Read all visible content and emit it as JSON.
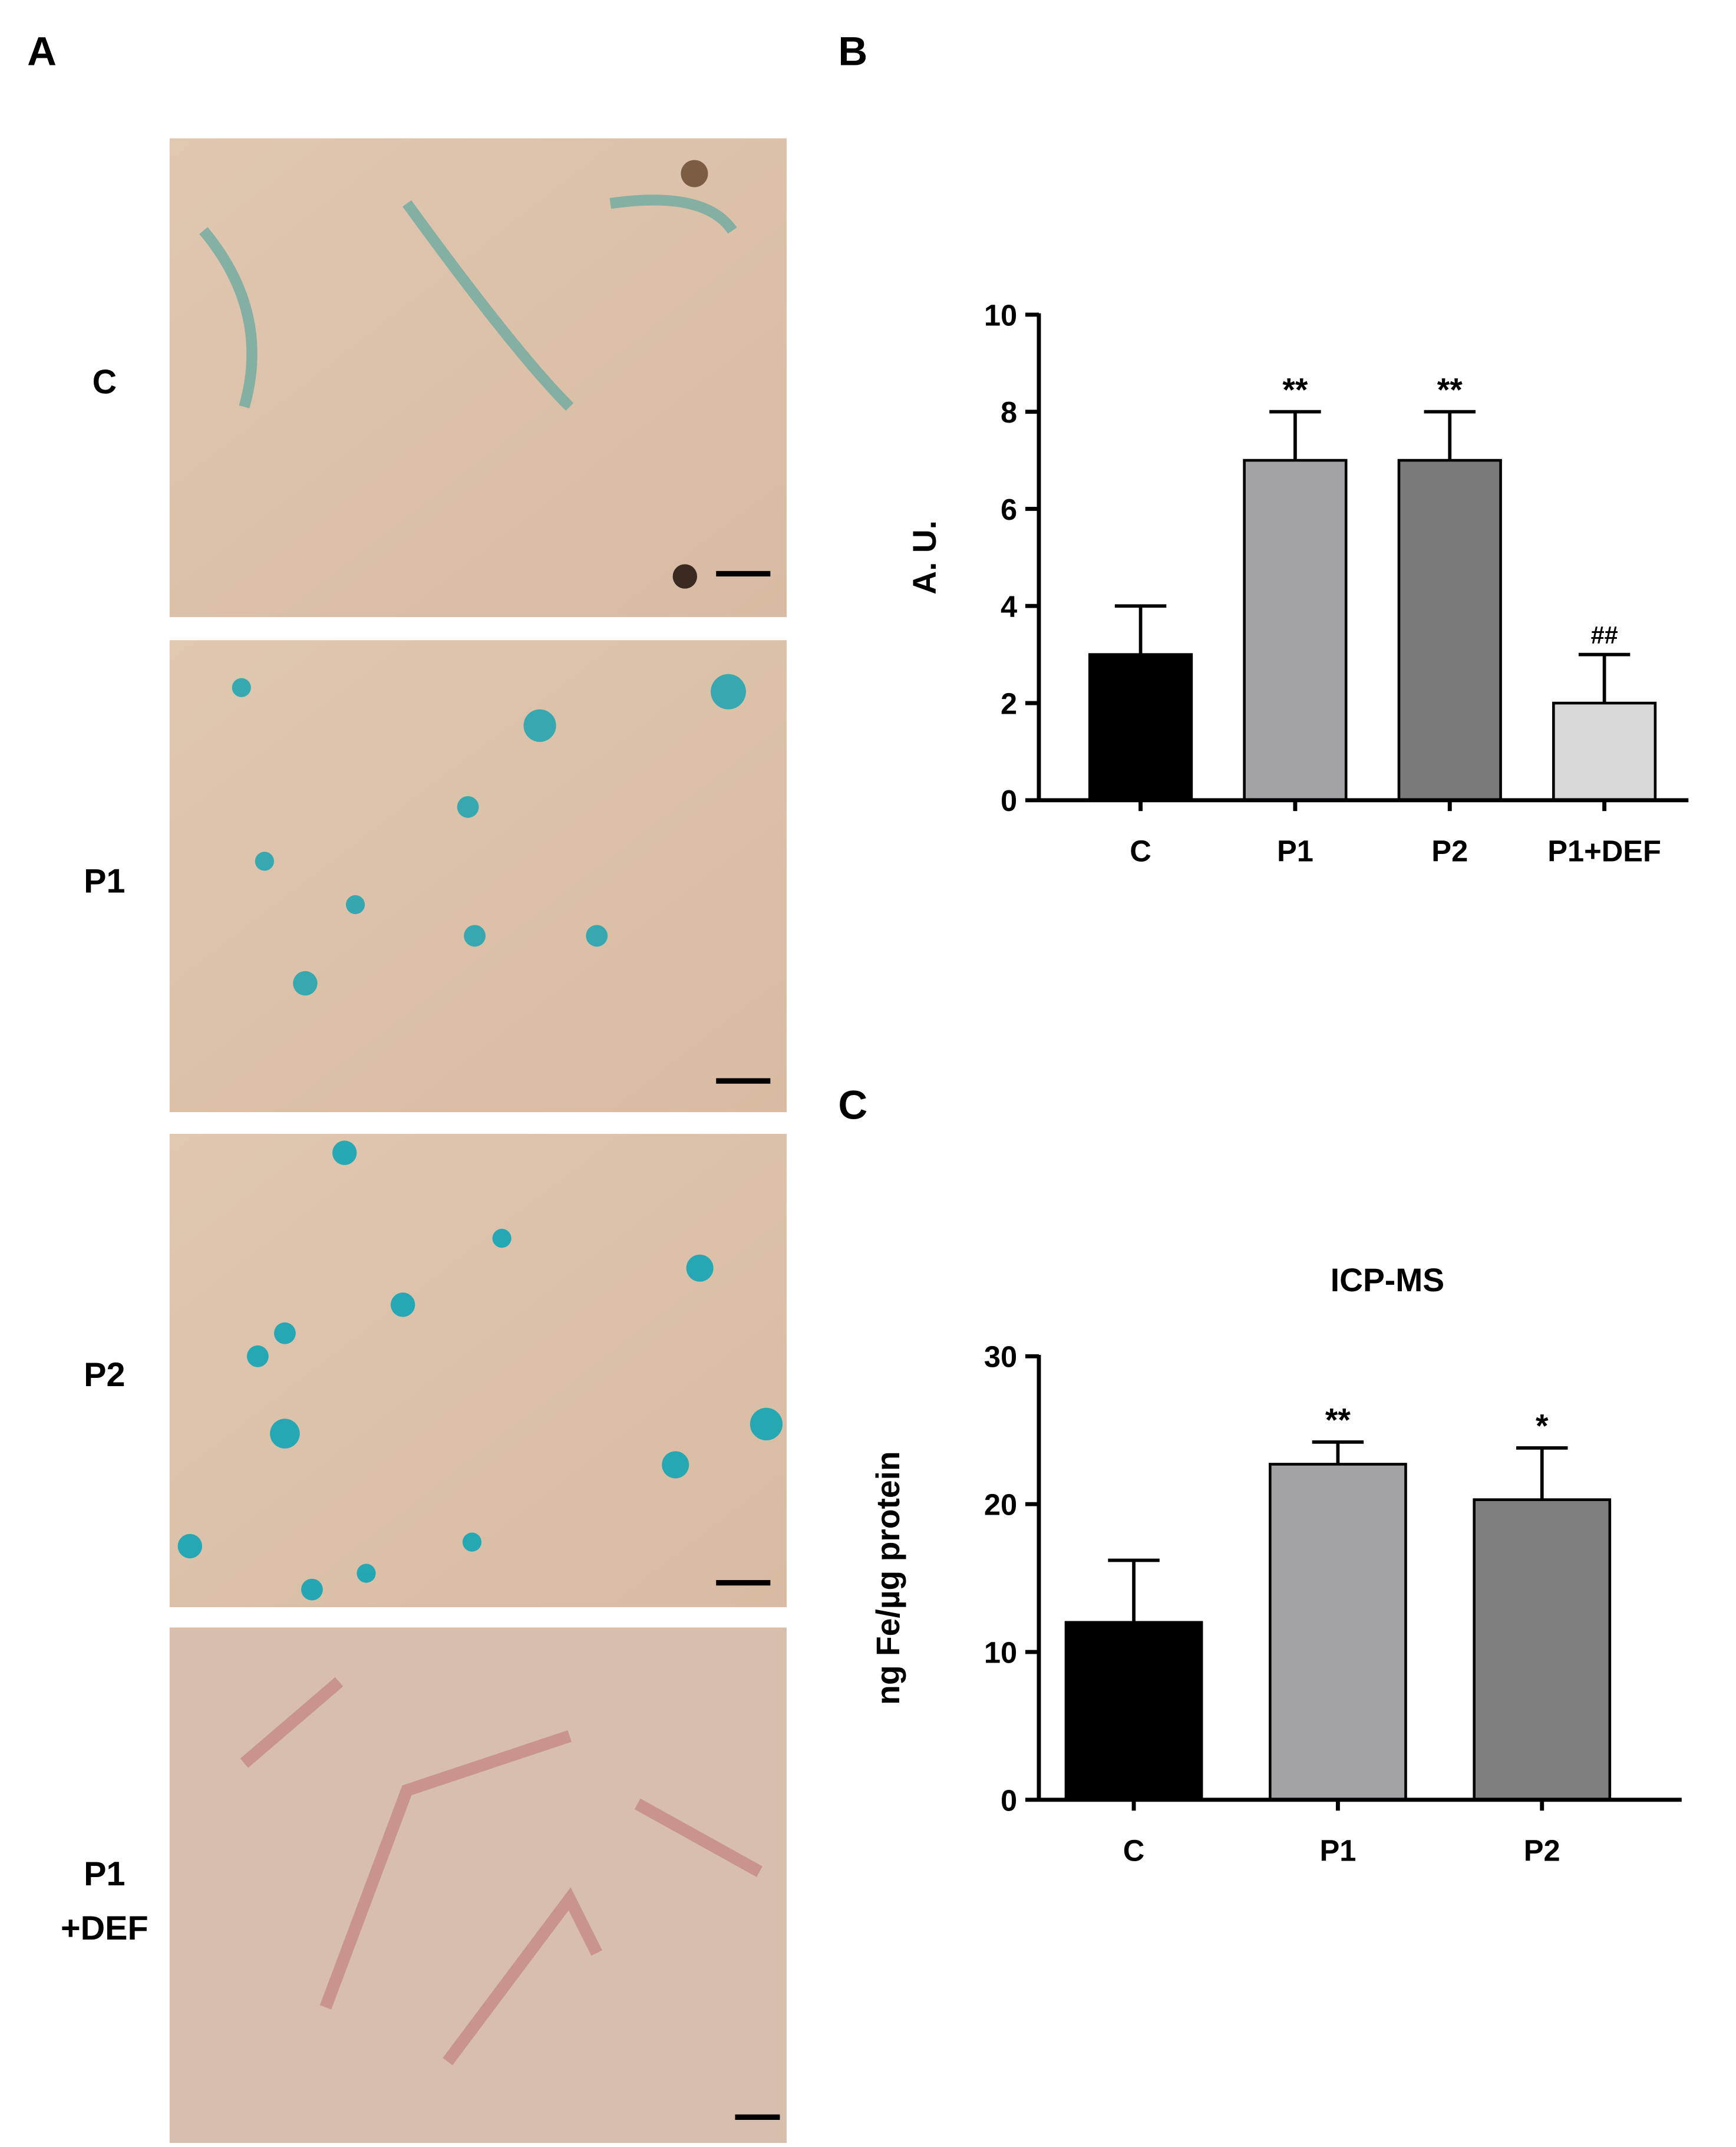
{
  "panel_labels": [
    "A",
    "B",
    "C"
  ],
  "micrograph_labels": [
    [
      "C"
    ],
    [
      "P1"
    ],
    [
      "P2"
    ],
    [
      "P1",
      "+DEF"
    ]
  ],
  "chart_data": [
    {
      "type": "bar",
      "ylabel": "A. U.",
      "categories": [
        "C",
        "P1",
        "P2",
        "P1+DEF"
      ],
      "values": [
        3,
        7,
        7,
        2
      ],
      "errors": [
        1,
        1,
        1,
        1
      ],
      "annotations": [
        null,
        "**",
        "**",
        "##"
      ],
      "colors": [
        "#000000",
        "#a3a2a7",
        "#7a7a7a",
        "#d9d9d9"
      ],
      "ylim": [
        0,
        10
      ],
      "yticks": [
        0,
        2,
        4,
        6,
        8,
        10
      ]
    },
    {
      "type": "bar",
      "title": "ICP-MS",
      "ylabel": "ng Fe/µg protein",
      "categories": [
        "C",
        "P1",
        "P2"
      ],
      "values": [
        12,
        22.7,
        20.3
      ],
      "errors": [
        4.2,
        1.5,
        3.5
      ],
      "annotations": [
        null,
        "**",
        "*"
      ],
      "colors": [
        "#000000",
        "#a3a2a7",
        "#7f7f7f"
      ],
      "ylim": [
        0,
        30
      ],
      "yticks": [
        0,
        10,
        20,
        30
      ]
    }
  ]
}
